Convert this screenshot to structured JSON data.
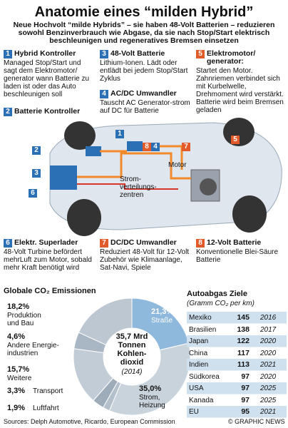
{
  "header": {
    "title": "Anatomie eines “milden Hybrid”",
    "subtitle": "Neue Hochvolt “milde Hybrids” – sie haben 48-Volt Batterien – reduzieren sowohl Benzinverbrauch wie Abgase, da sie nach Stop/Start elektrisch beschleunigen und regeneratives Bremsen einsetzen"
  },
  "sections": [
    {
      "number": "1",
      "heading": "Hybrid Kontroller",
      "text": "Managed Stop/Start und sagt dem Elektromotor/ generator wann Batterie zu laden ist oder das Auto beschleunigen soll"
    },
    {
      "number": "2",
      "heading": "Batterie Kontroller"
    },
    {
      "number": "3",
      "heading": "48-Volt Batterie",
      "text": "Lithium-Ionen. Lädt oder entlädt bei jedem Stop/Start Zyklus"
    },
    {
      "number": "4",
      "heading": "AC/DC Umwandler",
      "text": "Tauscht AC Generator-strom auf DC für Batterie"
    },
    {
      "number": "5",
      "heading": "Elektromotor/ generator:",
      "text": "Startet den Motor. Zahnriemen verbindet sich mit Kurbelwelle, Drehmoment wird verstärkt. Batterie wird beim Bremsen geladen"
    },
    {
      "number": "6",
      "heading": "Elektr. Superlader",
      "text": "48-Volt Turbine befördert mehrLuft zum Motor, sobald mehr Kraft benötigt wird"
    },
    {
      "number": "7",
      "heading": "DC/DC Umwandler",
      "text": "Reduziert 48-Volt für 12-Volt Zubehör wie Klimaanlage, Sat-Navi, Spiele"
    },
    {
      "number": "8",
      "heading": "12-Volt Batterie",
      "text": "Konventionelle Blei-Säure Batterie"
    }
  ],
  "diagram": {
    "motor": "Motor",
    "center": "Strom-\nverteilungs-\nzentren"
  },
  "chart_data": {
    "type": "pie",
    "title": "Globale CO₂ Emissionen",
    "center_text": "35,7 Mrd\nTonnen\nKohlen-\ndioxid",
    "center_note": "(2014)",
    "categories": [
      "Straße",
      "Strom,\nHeizung",
      "Luftfahrt",
      "Transport",
      "Weitere",
      "Andere Energie-\nindustrien",
      "Produktion\nund Bau"
    ],
    "values": [
      21.3,
      35.0,
      1.9,
      3.3,
      15.7,
      4.6,
      18.2
    ],
    "value_labels": [
      "21,3%",
      "35,0%",
      "1,9%",
      "3,3%",
      "15,7%",
      "4,6%",
      "18,2%"
    ],
    "colors": [
      "#8fb9dc",
      "#c9d3dc",
      "#b3bfcb",
      "#9eacba",
      "#c2ccd6",
      "#a9b6c3",
      "#bcc7d1"
    ]
  },
  "table": {
    "title": "Autoabgas Ziele",
    "subtitle": "(Gramm CO₂ per km)",
    "rows": [
      [
        "Mexiko",
        "145",
        "2016"
      ],
      [
        "Brasilien",
        "138",
        "2017"
      ],
      [
        "Japan",
        "122",
        "2020"
      ],
      [
        "China",
        "117",
        "2020"
      ],
      [
        "Indien",
        "113",
        "2021"
      ],
      [
        "Südkorea",
        "97",
        "2020"
      ],
      [
        "USA",
        "97",
        "2025"
      ],
      [
        "Kanada",
        "97",
        "2025"
      ],
      [
        "EU",
        "95",
        "2021"
      ]
    ]
  },
  "footer": {
    "sources": "Sources: Delph Automotive, Ricardo, European Commission",
    "credit": "© GRAPHIC NEWS"
  }
}
